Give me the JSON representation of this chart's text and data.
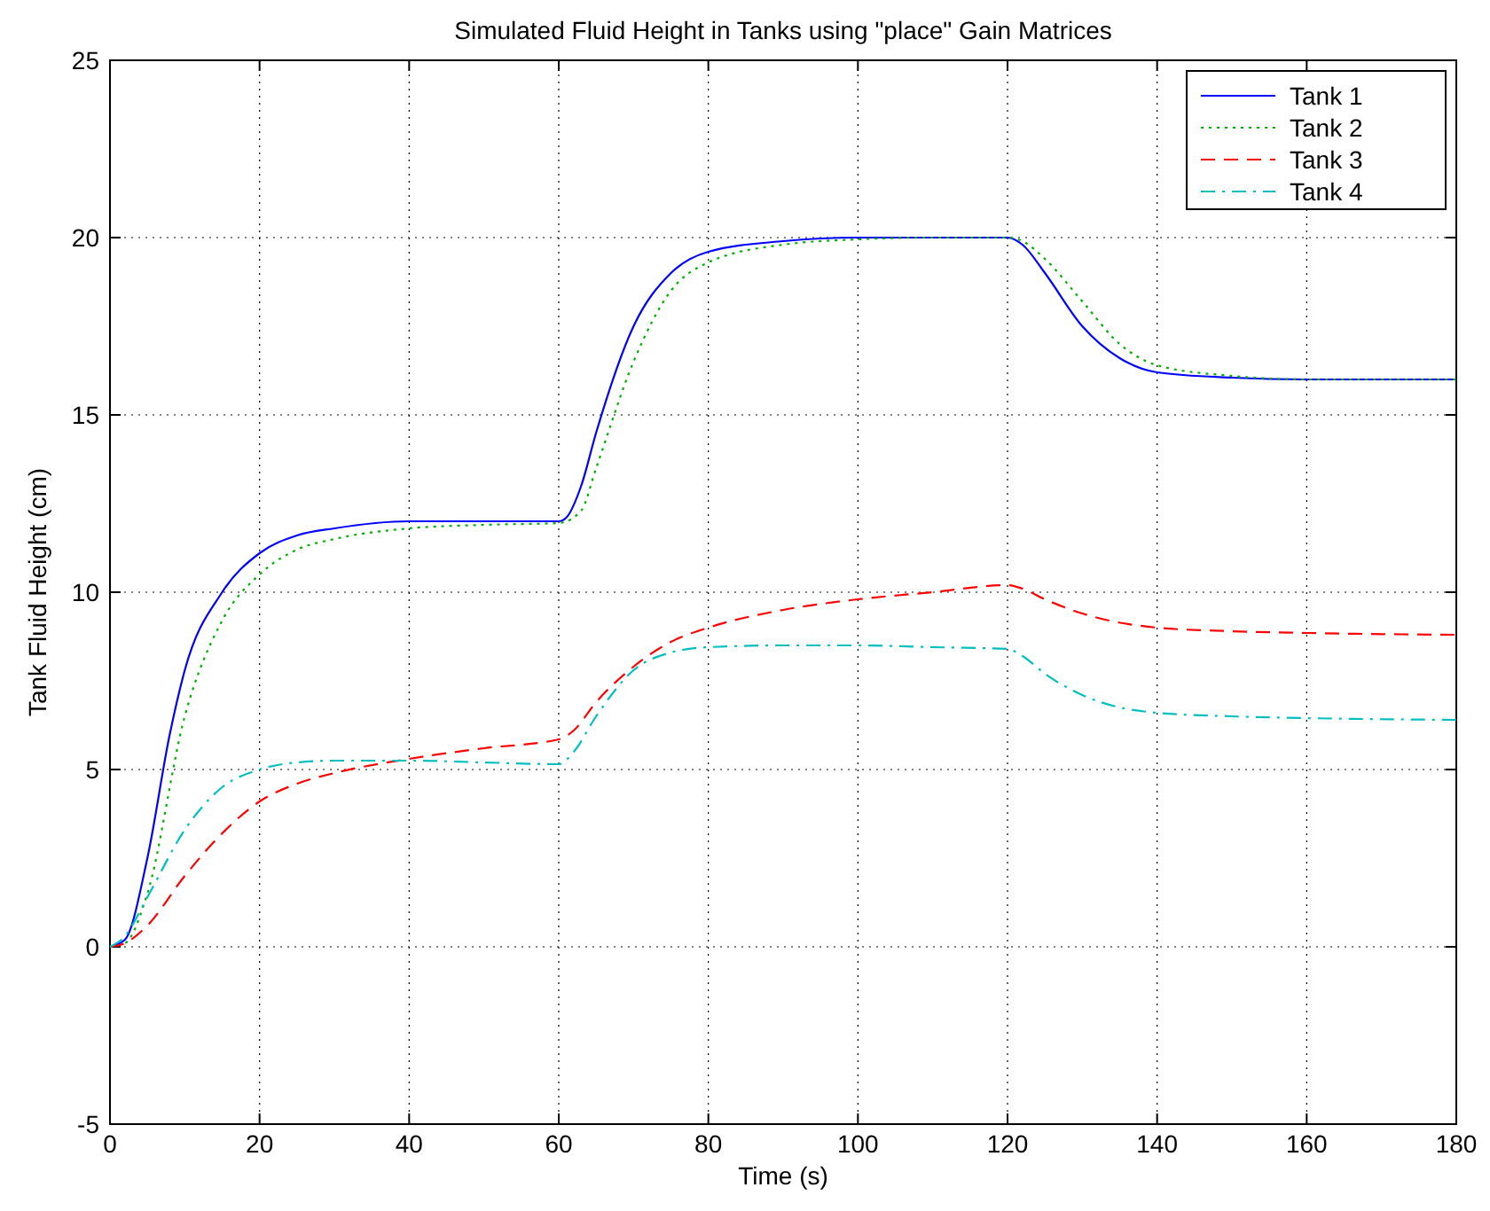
{
  "chart_data": {
    "type": "line",
    "title": "Simulated Fluid Height in Tanks using \"place\" Gain Matrices",
    "xlabel": "Time (s)",
    "ylabel": "Tank Fluid Height (cm)",
    "xlim": [
      0,
      180
    ],
    "xticks": [
      0,
      20,
      40,
      60,
      80,
      100,
      120,
      140,
      160,
      180
    ],
    "ylim": [
      -5,
      25
    ],
    "yticks": [
      -5,
      0,
      5,
      10,
      15,
      20,
      25
    ],
    "grid": true,
    "legend": "top right",
    "series": [
      {
        "name": "Tank 1",
        "color": "#0000ff",
        "line_style": "solid",
        "x": [
          0,
          2,
          5,
          8,
          10,
          15,
          20,
          25,
          30,
          40,
          50,
          60,
          61,
          63,
          65,
          70,
          75,
          80,
          90,
          100,
          110,
          120,
          122,
          125,
          130,
          135,
          140,
          150,
          160,
          180
        ],
        "values": [
          0,
          0.2,
          2.5,
          6,
          7.8,
          10,
          11.1,
          11.6,
          11.8,
          12,
          12,
          12,
          12.1,
          13,
          14.5,
          17.5,
          19,
          19.6,
          19.9,
          20,
          20,
          20,
          19.8,
          19,
          17.5,
          16.6,
          16.2,
          16.05,
          16,
          16
        ]
      },
      {
        "name": "Tank 2",
        "color": "#00b000",
        "line_style": "dotted",
        "x": [
          0,
          2,
          5,
          10,
          15,
          20,
          25,
          30,
          40,
          50,
          60,
          63,
          65,
          70,
          75,
          80,
          90,
          100,
          110,
          120,
          122,
          125,
          130,
          135,
          140,
          150,
          160,
          180
        ],
        "values": [
          0,
          0.1,
          1.5,
          6.5,
          9.2,
          10.5,
          11.2,
          11.5,
          11.8,
          11.9,
          11.95,
          12.3,
          13.5,
          16.5,
          18.5,
          19.3,
          19.8,
          19.95,
          20,
          20,
          19.9,
          19.4,
          18.2,
          17,
          16.4,
          16.1,
          16,
          16
        ]
      },
      {
        "name": "Tank 3",
        "color": "#ff0000",
        "line_style": "dashed",
        "x": [
          0,
          2,
          5,
          10,
          15,
          20,
          25,
          30,
          40,
          50,
          60,
          62,
          65,
          70,
          75,
          80,
          90,
          100,
          110,
          120,
          122,
          125,
          130,
          140,
          150,
          160,
          180
        ],
        "values": [
          0,
          0.1,
          0.6,
          2,
          3.2,
          4.1,
          4.6,
          4.9,
          5.3,
          5.6,
          5.85,
          6.1,
          6.9,
          7.9,
          8.6,
          9,
          9.5,
          9.8,
          10,
          10.2,
          10.1,
          9.8,
          9.4,
          9,
          8.9,
          8.85,
          8.8
        ]
      },
      {
        "name": "Tank 4",
        "color": "#00bfbf",
        "line_style": "dashdot",
        "x": [
          0,
          2,
          5,
          10,
          15,
          20,
          25,
          30,
          40,
          50,
          60,
          62,
          65,
          70,
          75,
          80,
          90,
          100,
          110,
          120,
          122,
          125,
          130,
          135,
          140,
          150,
          160,
          180
        ],
        "values": [
          0,
          0.3,
          1.4,
          3.3,
          4.5,
          5,
          5.2,
          5.25,
          5.25,
          5.2,
          5.15,
          5.5,
          6.5,
          7.8,
          8.3,
          8.45,
          8.5,
          8.5,
          8.45,
          8.4,
          8.2,
          7.7,
          7.1,
          6.75,
          6.6,
          6.5,
          6.45,
          6.4
        ]
      }
    ]
  }
}
